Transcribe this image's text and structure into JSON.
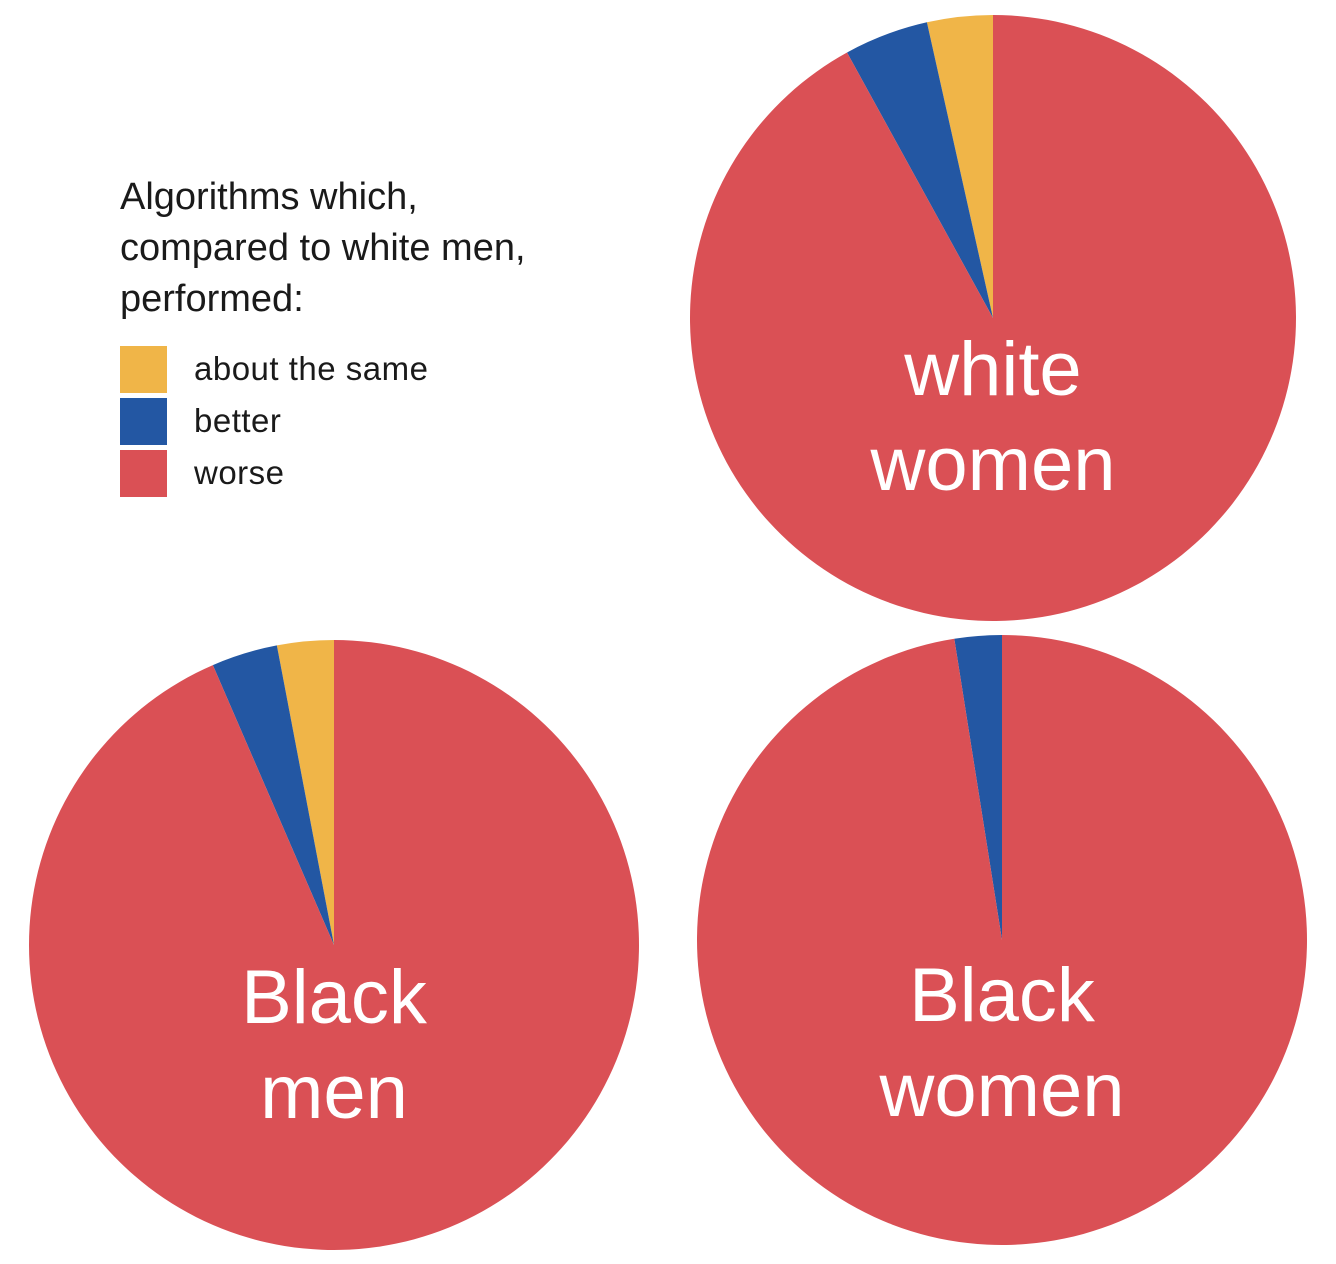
{
  "legend": {
    "title_lines": [
      "Algorithms which,",
      "compared to white men,",
      "performed:"
    ]
  },
  "chart_data": [
    {
      "type": "pie",
      "label_lines": [
        "white",
        "women"
      ],
      "categories": [
        "about the same",
        "better",
        "worse"
      ],
      "values": [
        3.5,
        4.5,
        92
      ],
      "colors": [
        "#F0B548",
        "#2357A3",
        "#DA5055"
      ]
    },
    {
      "type": "pie",
      "label_lines": [
        "Black",
        "men"
      ],
      "categories": [
        "about the same",
        "better",
        "worse"
      ],
      "values": [
        3,
        3.5,
        93.5
      ],
      "colors": [
        "#F0B548",
        "#2357A3",
        "#DA5055"
      ]
    },
    {
      "type": "pie",
      "label_lines": [
        "Black",
        "women"
      ],
      "categories": [
        "about the same",
        "better",
        "worse"
      ],
      "values": [
        0,
        2.5,
        97.5
      ],
      "colors": [
        "#F0B548",
        "#2357A3",
        "#DA5055"
      ]
    }
  ]
}
